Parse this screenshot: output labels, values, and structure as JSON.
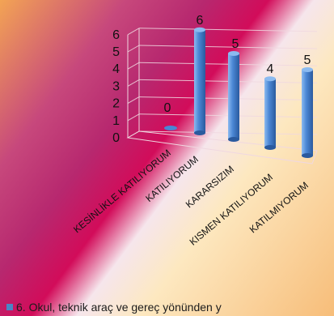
{
  "colors": {
    "bar_light": "#8bbaf0",
    "bar_mid": "#4a86d4",
    "bar_dark": "#2a5a9e",
    "axis_line": "#f0d8e0",
    "tick_text": "#111111"
  },
  "chart_data": {
    "type": "bar",
    "style": "3d-cylinder",
    "categories": [
      "KESİNLİKLE KATILIYORUM",
      "KATILIYORUM",
      "KARARSIZIM",
      "KISMEN KATILIYORUM",
      "KATILMIYORUM"
    ],
    "values": [
      0,
      6,
      5,
      4,
      5
    ],
    "data_labels": [
      "0",
      "6",
      "5",
      "4",
      "5"
    ],
    "y_ticks": [
      "0",
      "1",
      "2",
      "3",
      "4",
      "5",
      "6"
    ],
    "ylim": [
      0,
      6
    ],
    "grid": true,
    "legend": "none"
  },
  "caption": {
    "text": "6. Okul, teknik araç ve gereç yönünden y"
  }
}
